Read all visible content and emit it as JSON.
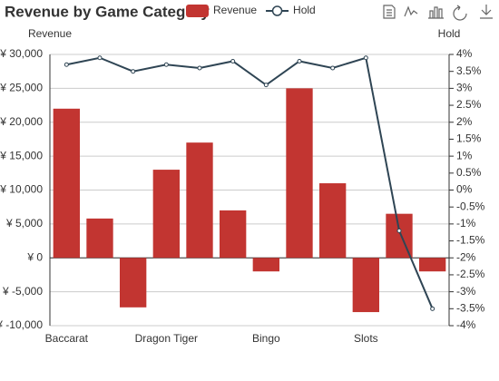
{
  "chart_data": {
    "type": "bar",
    "title": "Revenue by Game Category",
    "categories": [
      "Baccarat",
      null,
      null,
      "Dragon Tiger",
      null,
      null,
      "Bingo",
      null,
      null,
      "Slots",
      null,
      null
    ],
    "series": [
      {
        "name": "Revenue",
        "type": "bar",
        "color": "#c23531",
        "values": [
          22000,
          5800,
          -7300,
          13000,
          17000,
          7000,
          -2000,
          25000,
          11000,
          -8000,
          6500,
          -2000
        ]
      },
      {
        "name": "Hold",
        "type": "line",
        "axis": "y2",
        "color": "#2f4554",
        "values": [
          3.7,
          3.9,
          3.5,
          3.7,
          3.6,
          3.8,
          3.1,
          3.8,
          3.6,
          3.9,
          -1.2,
          -3.5
        ]
      }
    ],
    "ylabel": "Revenue",
    "y2label": "Hold",
    "ylim": [
      -10000,
      30000
    ],
    "yticks": [
      {
        "value": -10000,
        "label": "¥ -10,000"
      },
      {
        "value": -5000,
        "label": "¥ -5,000"
      },
      {
        "value": 0,
        "label": "¥ 0"
      },
      {
        "value": 5000,
        "label": "¥ 5,000"
      },
      {
        "value": 10000,
        "label": "¥ 10,000"
      },
      {
        "value": 15000,
        "label": "¥ 15,000"
      },
      {
        "value": 20000,
        "label": "¥ 20,000"
      },
      {
        "value": 25000,
        "label": "¥ 25,000"
      },
      {
        "value": 30000,
        "label": "¥ 30,000"
      }
    ],
    "y2lim": [
      -4,
      4
    ],
    "y2ticks": [
      {
        "value": -4,
        "label": "-4%"
      },
      {
        "value": -3.5,
        "label": "-3.5%"
      },
      {
        "value": -3,
        "label": "-3%"
      },
      {
        "value": -2.5,
        "label": "-2.5%"
      },
      {
        "value": -2,
        "label": "-2%"
      },
      {
        "value": -1.5,
        "label": "-1.5%"
      },
      {
        "value": -1,
        "label": "-1%"
      },
      {
        "value": -0.5,
        "label": "-0.5%"
      },
      {
        "value": 0,
        "label": "0%"
      },
      {
        "value": 0.5,
        "label": "0.5%"
      },
      {
        "value": 1,
        "label": "1%"
      },
      {
        "value": 1.5,
        "label": "1.5%"
      },
      {
        "value": 2,
        "label": "2%"
      },
      {
        "value": 2.5,
        "label": "2.5%"
      },
      {
        "value": 3,
        "label": "3%"
      },
      {
        "value": 3.5,
        "label": "3.5%"
      },
      {
        "value": 4,
        "label": "4%"
      }
    ],
    "grid": true,
    "legend": "top"
  }
}
